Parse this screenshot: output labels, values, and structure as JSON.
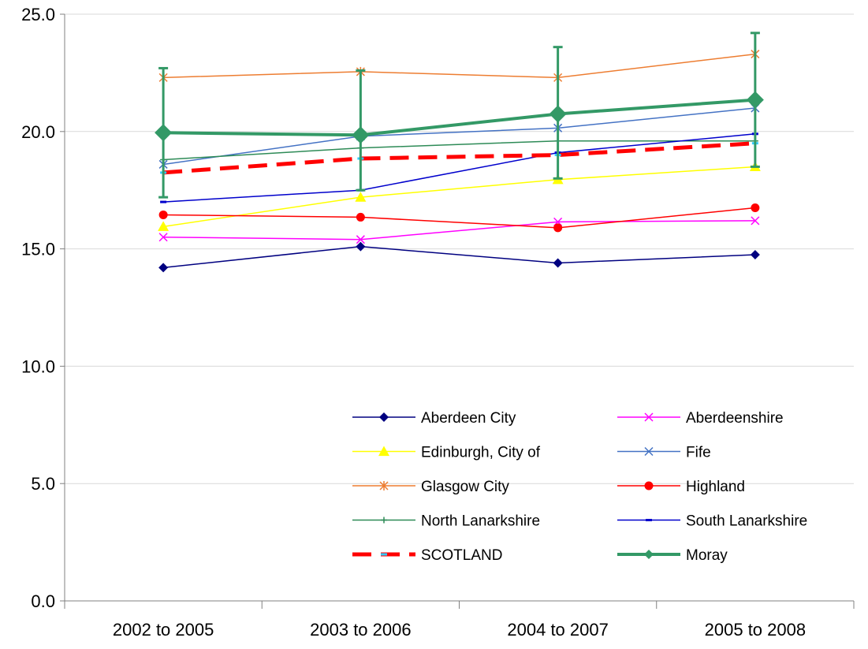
{
  "chart_data": {
    "type": "line",
    "title": "",
    "xlabel": "",
    "ylabel": "",
    "categories": [
      "2002 to 2005",
      "2003 to 2006",
      "2004 to 2007",
      "2005 to 2008"
    ],
    "ylim": [
      0,
      25
    ],
    "yticks": [
      "0.0",
      "5.0",
      "10.0",
      "15.0",
      "20.0",
      "25.0"
    ],
    "grid": true,
    "legend_position": "lower-right",
    "series": [
      {
        "name": "Aberdeen City",
        "values": [
          14.2,
          15.1,
          14.4,
          14.75
        ],
        "color": "#000080",
        "marker": "diamond"
      },
      {
        "name": "Aberdeenshire",
        "values": [
          15.5,
          15.4,
          16.15,
          16.2
        ],
        "color": "#ff00ff",
        "marker": "x"
      },
      {
        "name": "Edinburgh, City of",
        "values": [
          15.95,
          17.2,
          17.95,
          18.5
        ],
        "color": "#ffff00",
        "marker": "triangle"
      },
      {
        "name": "Fife",
        "values": [
          18.6,
          19.8,
          20.15,
          21.0
        ],
        "color": "#4472c4",
        "marker": "x"
      },
      {
        "name": "Glasgow City",
        "values": [
          22.3,
          22.55,
          22.3,
          23.3
        ],
        "color": "#ed7d31",
        "marker": "star"
      },
      {
        "name": "Highland",
        "values": [
          16.45,
          16.35,
          15.9,
          16.75
        ],
        "color": "#ff0000",
        "marker": "circle"
      },
      {
        "name": "North Lanarkshire",
        "values": [
          18.8,
          19.3,
          19.6,
          19.6
        ],
        "color": "#2e8b57",
        "marker": "plus"
      },
      {
        "name": "South Lanarkshire",
        "values": [
          17.0,
          17.5,
          19.1,
          19.9
        ],
        "color": "#0000cc",
        "marker": "dash"
      },
      {
        "name": "SCOTLAND",
        "values": [
          18.25,
          18.85,
          19.0,
          19.5
        ],
        "color": "#ff0000",
        "marker": "dash",
        "dashed": true,
        "marker_color": "#33ccff"
      },
      {
        "name": "Moray",
        "values": [
          19.95,
          19.85,
          20.75,
          21.35
        ],
        "color": "#339966",
        "marker": "diamond",
        "error_bars": [
          [
            17.2,
            22.7
          ],
          [
            17.5,
            22.6
          ],
          [
            18.0,
            23.6
          ],
          [
            18.5,
            24.2
          ]
        ]
      }
    ]
  }
}
